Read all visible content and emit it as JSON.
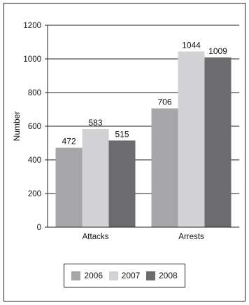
{
  "chart_data": {
    "type": "bar",
    "title": "",
    "xlabel": "",
    "ylabel": "Number",
    "categories": [
      "Attacks",
      "Arrests"
    ],
    "series": [
      {
        "name": "2006",
        "values": [
          472,
          706
        ],
        "color": "#a6a6a8"
      },
      {
        "name": "2007",
        "values": [
          583,
          1044
        ],
        "color": "#d2d2d4"
      },
      {
        "name": "2008",
        "values": [
          515,
          1009
        ],
        "color": "#6c6c6e"
      }
    ],
    "ylim": [
      0,
      1200
    ],
    "yticks": [
      0,
      200,
      400,
      600,
      800,
      1000,
      1200
    ],
    "grid": true,
    "legend_position": "bottom"
  }
}
